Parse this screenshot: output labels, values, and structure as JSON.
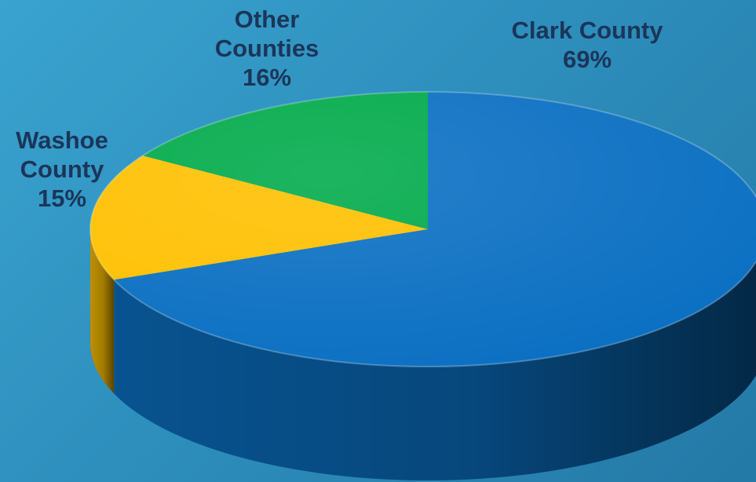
{
  "chart_data": {
    "type": "pie",
    "style": "3d",
    "title": "",
    "start": "12 o'clock",
    "direction": "clockwise",
    "slices": [
      {
        "label_lines": [
          "Clark County"
        ],
        "value": 69,
        "value_label": "69%",
        "color": "#0a6fc2"
      },
      {
        "label_lines": [
          "Washoe",
          "County"
        ],
        "value": 15,
        "value_label": "15%",
        "color": "#ffc000"
      },
      {
        "label_lines": [
          "Other",
          "Counties"
        ],
        "value": 16,
        "value_label": "16%",
        "color": "#00aa4a"
      }
    ]
  },
  "colors": {
    "background": "#2e8fbd",
    "label_text": "#1b3558"
  }
}
